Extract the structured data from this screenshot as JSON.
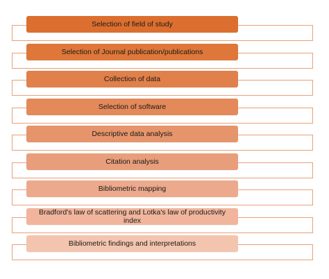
{
  "steps": [
    {
      "label": "Selection of field of study",
      "color": "#dc6f2f"
    },
    {
      "label": "Selection of Journal publication/publications",
      "color": "#de7739"
    },
    {
      "label": "Collection of data",
      "color": "#e0804a"
    },
    {
      "label": "Selection of software",
      "color": "#e3895a"
    },
    {
      "label": "Descriptive data analysis",
      "color": "#e6946b"
    },
    {
      "label": "Citation analysis",
      "color": "#e89e7a"
    },
    {
      "label": "Bibliometric mapping",
      "color": "#eca98c"
    },
    {
      "label": "Bradford's law of scattering and Lotka's law of productivity index",
      "color": "#f0b59c"
    },
    {
      "label": "Bibliometric findings and interpretations",
      "color": "#f3c4ae"
    }
  ]
}
